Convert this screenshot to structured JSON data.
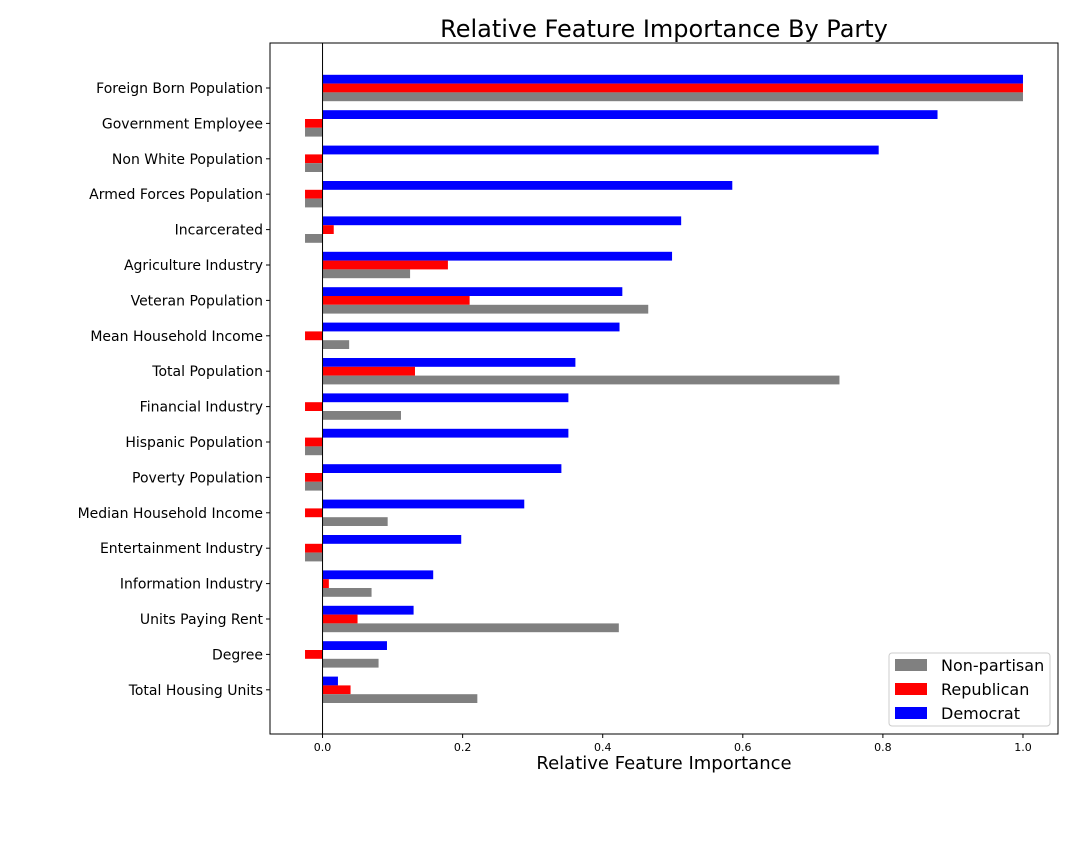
{
  "chart_data": {
    "type": "bar",
    "orientation": "horizontal",
    "title": "Relative Feature Importance By Party",
    "xlabel": "Relative Feature Importance",
    "ylabel": "",
    "xlim": [
      -0.075,
      1.05
    ],
    "xticks": [
      0.0,
      0.2,
      0.4,
      0.6,
      0.8,
      1.0
    ],
    "xtick_labels": [
      "0.0",
      "0.2",
      "0.4",
      "0.6",
      "0.8",
      "1.0"
    ],
    "grid": false,
    "legend_position": "bottom-right",
    "categories": [
      "Foreign Born Population",
      "Government Employee",
      "Non White Population",
      "Armed Forces Population",
      "Incarcerated",
      "Agriculture Industry",
      "Veteran Population",
      "Mean Household Income",
      "Total Population",
      "Financial Industry",
      "Hispanic Population",
      "Poverty Population",
      "Median Household Income",
      "Entertainment Industry",
      "Information Industry",
      "Units Paying Rent",
      "Degree",
      "Total Housing Units"
    ],
    "series": [
      {
        "name": "Non-partisan",
        "color": "#808080",
        "values": [
          1.0,
          -0.025,
          -0.025,
          -0.025,
          -0.025,
          0.125,
          0.465,
          0.038,
          0.738,
          0.112,
          -0.025,
          -0.025,
          0.093,
          -0.025,
          0.07,
          0.423,
          0.08,
          0.221
        ]
      },
      {
        "name": "Republican",
        "color": "#ff0000",
        "values": [
          1.0,
          -0.025,
          -0.025,
          -0.025,
          0.016,
          0.179,
          0.21,
          -0.025,
          0.132,
          -0.025,
          -0.025,
          -0.025,
          -0.025,
          -0.025,
          0.009,
          0.05,
          -0.025,
          0.04
        ]
      },
      {
        "name": "Democrat",
        "color": "#0000ff",
        "values": [
          1.0,
          0.878,
          0.794,
          0.585,
          0.512,
          0.499,
          0.428,
          0.424,
          0.361,
          0.351,
          0.351,
          0.341,
          0.288,
          0.198,
          0.158,
          0.13,
          0.092,
          0.022
        ]
      }
    ]
  }
}
